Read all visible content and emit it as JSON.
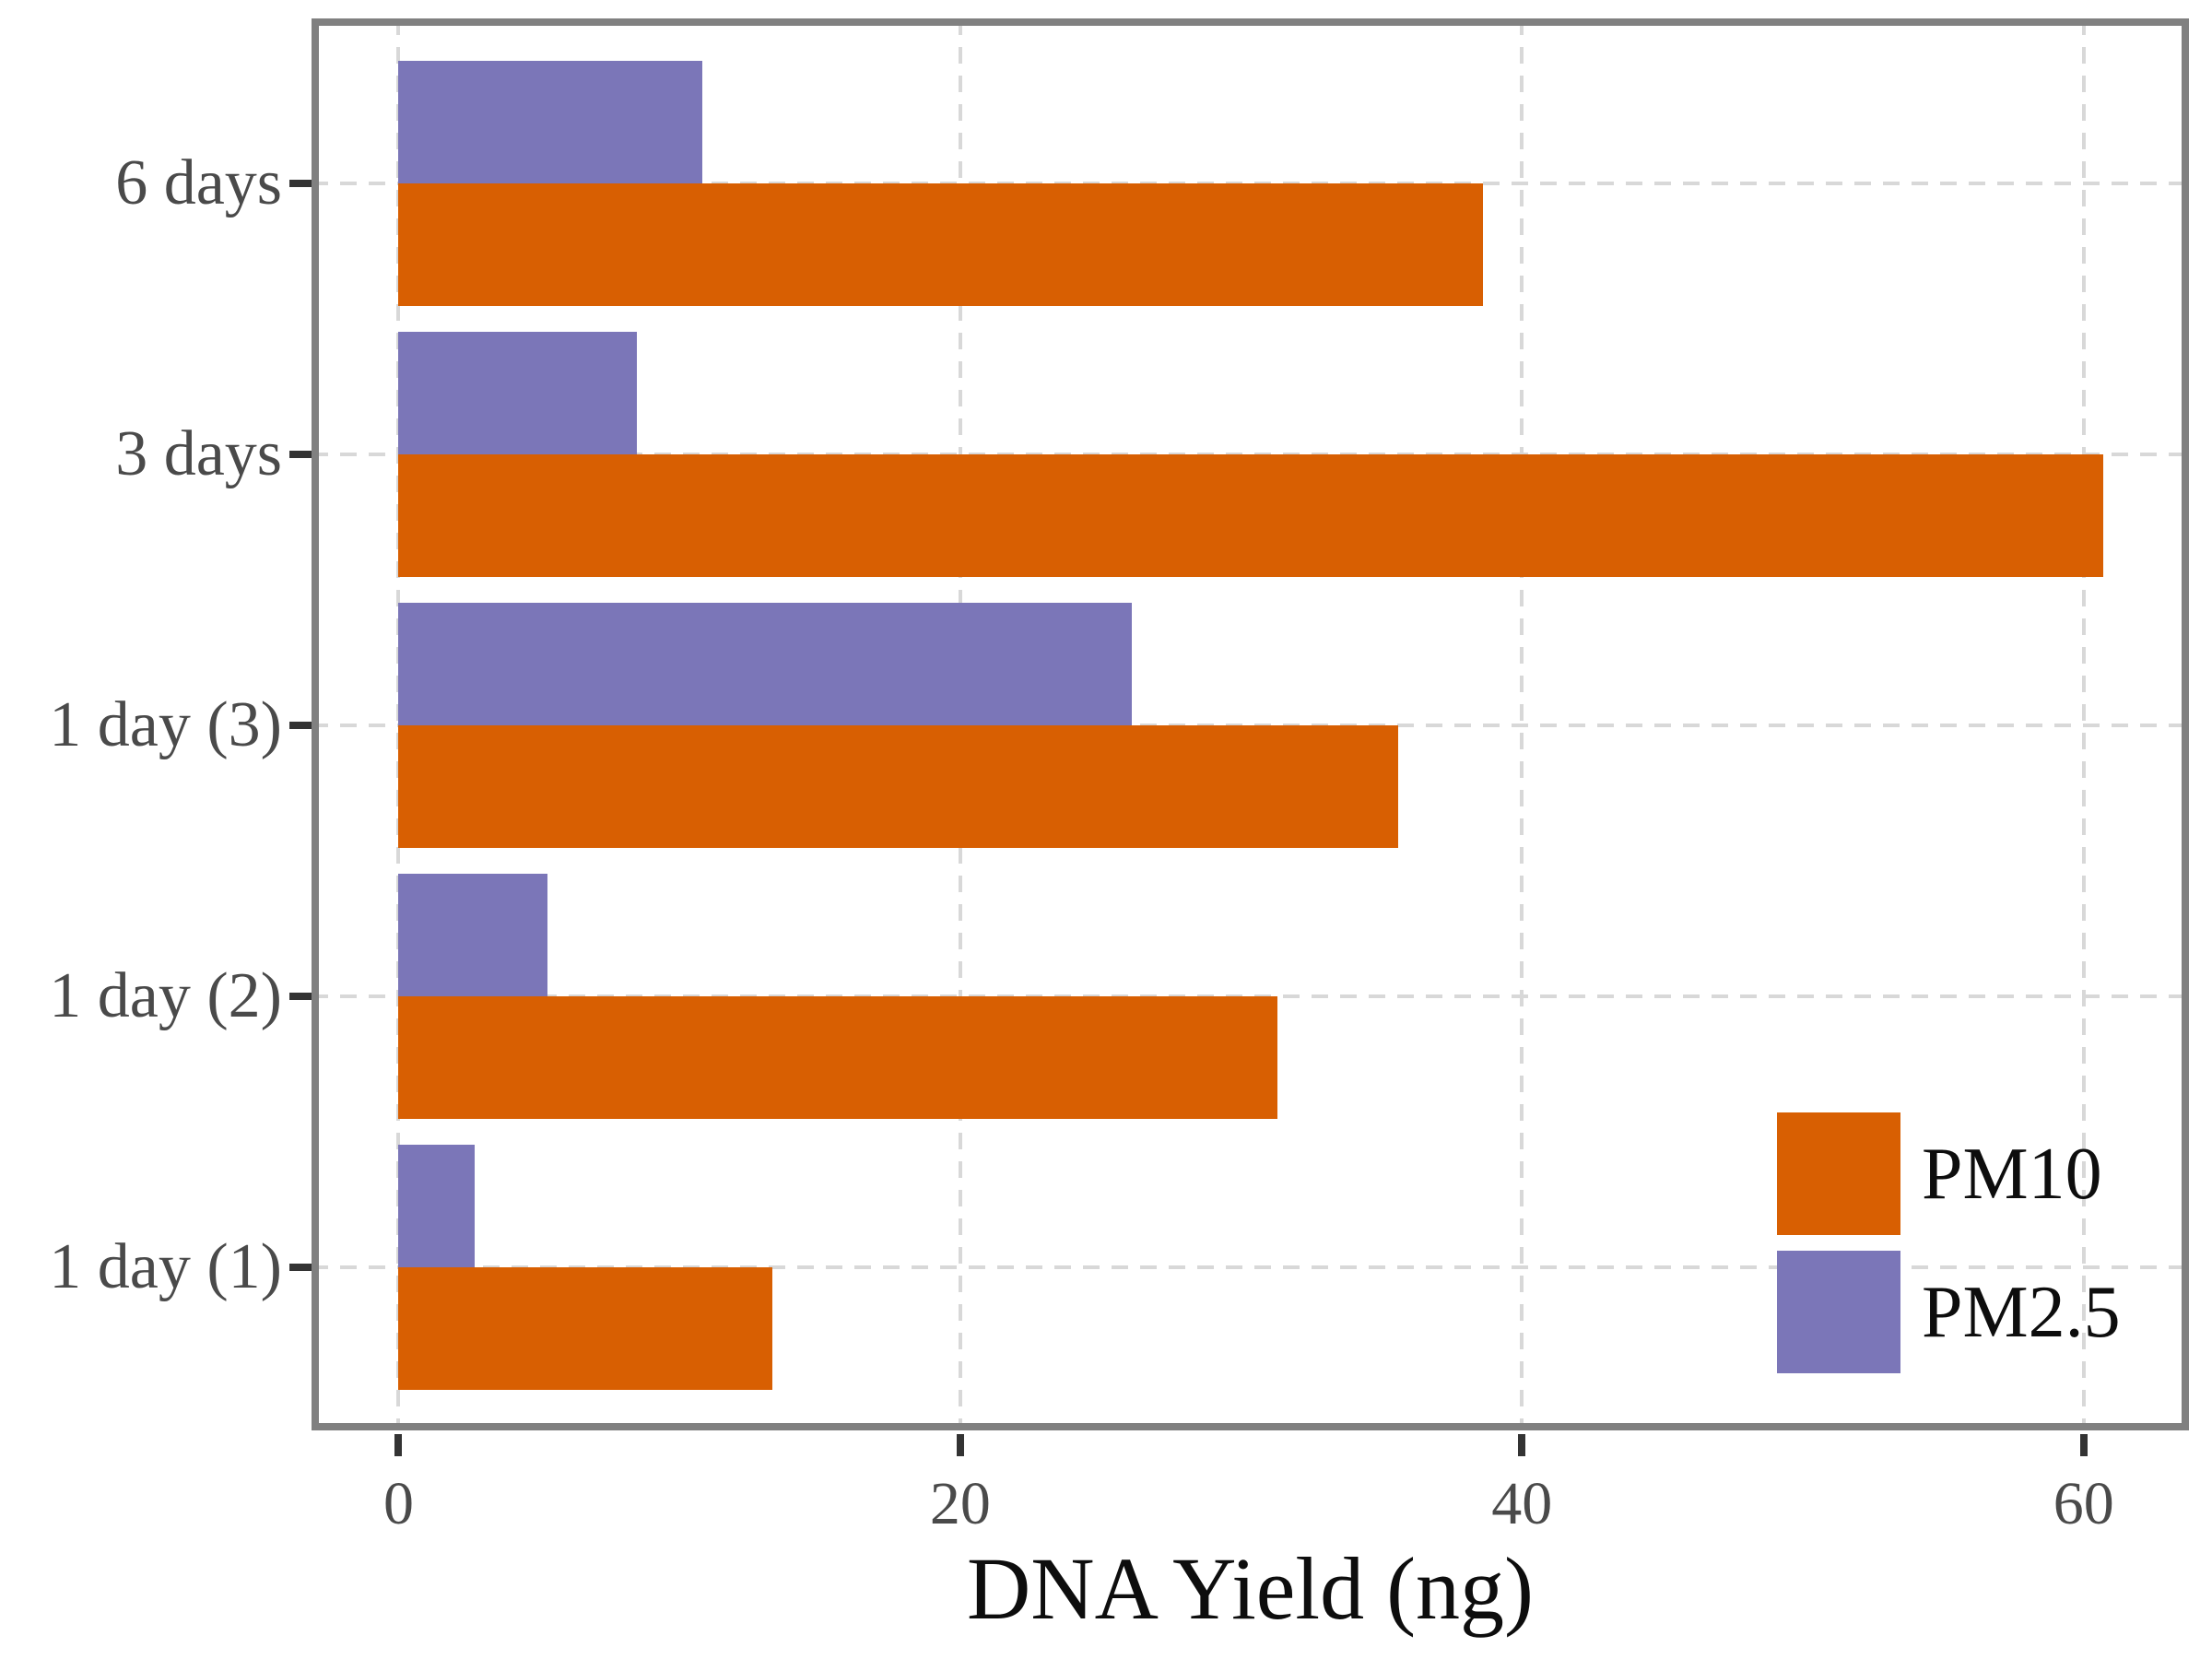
{
  "chart_data": {
    "type": "bar",
    "orientation": "horizontal",
    "title": "",
    "xlabel": "DNA Yield (ng)",
    "ylabel": "",
    "categories": [
      "6 days",
      "3 days",
      "1 day (3)",
      "1 day (2)",
      "1 day (1)"
    ],
    "series": [
      {
        "name": "PM10",
        "color": "#D85F02",
        "values": [
          38.6,
          60.7,
          35.6,
          31.3,
          13.3
        ]
      },
      {
        "name": "PM2.5",
        "color": "#7B76B8",
        "values": [
          10.8,
          8.5,
          26.1,
          5.3,
          2.7
        ]
      }
    ],
    "xlim": [
      -3.1,
      63.75
    ],
    "xticks": [
      0,
      20,
      40,
      60
    ],
    "xtick_labels": [
      "0",
      "20",
      "40",
      "60"
    ],
    "grid": "dashed-major-both-axes",
    "legend_position": "inside-bottom-right",
    "legend_items": [
      "PM10",
      "PM2.5"
    ]
  },
  "colors": {
    "pm10": "#D85F02",
    "pm25": "#7B76B8",
    "panel_border": "#808080",
    "gridline": "#D8D8D8",
    "tick_mark": "#333333",
    "tick_label": "#4A4A4A",
    "text": "#0D0D0D",
    "background": "#FFFFFF"
  }
}
